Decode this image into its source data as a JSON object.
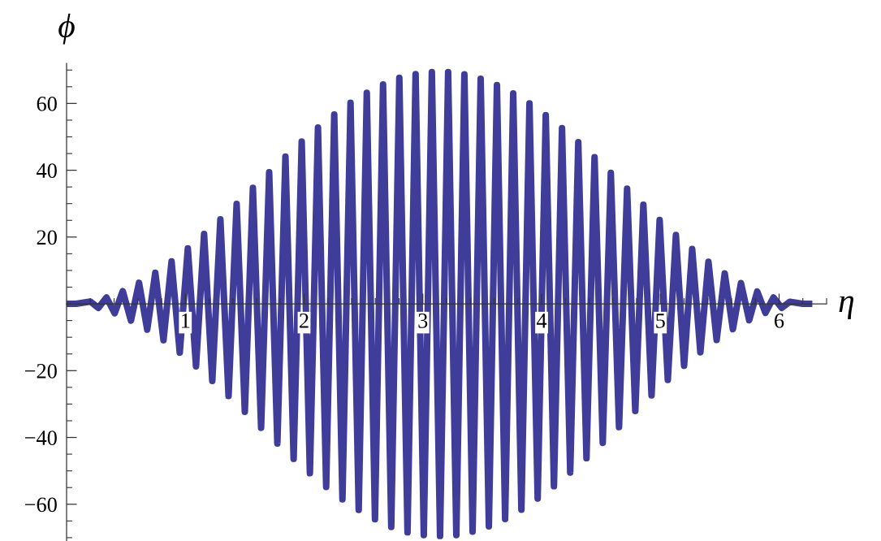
{
  "chart_data": {
    "type": "line",
    "xlabel": "η",
    "ylabel": "ϕ",
    "xlim": [
      0,
      6.4
    ],
    "ylim": [
      -71,
      72
    ],
    "xticks": [
      {
        "value": 0.2,
        "label": null
      },
      {
        "value": 0.4,
        "label": null
      },
      {
        "value": 0.6,
        "label": null
      },
      {
        "value": 0.8,
        "label": null
      },
      1,
      {
        "value": 1.2,
        "label": null
      },
      {
        "value": 1.4,
        "label": null
      },
      {
        "value": 1.6,
        "label": null
      },
      {
        "value": 1.8,
        "label": null
      },
      2,
      {
        "value": 2.2,
        "label": null
      },
      {
        "value": 2.4,
        "label": null
      },
      {
        "value": 2.6,
        "label": null
      },
      {
        "value": 2.8,
        "label": null
      },
      3,
      {
        "value": 3.2,
        "label": null
      },
      {
        "value": 3.4,
        "label": null
      },
      {
        "value": 3.6,
        "label": null
      },
      {
        "value": 3.8,
        "label": null
      },
      4,
      {
        "value": 4.2,
        "label": null
      },
      {
        "value": 4.4,
        "label": null
      },
      {
        "value": 4.6,
        "label": null
      },
      {
        "value": 4.8,
        "label": null
      },
      5,
      {
        "value": 5.2,
        "label": null
      },
      {
        "value": 5.4,
        "label": null
      },
      {
        "value": 5.6,
        "label": null
      },
      {
        "value": 5.8,
        "label": null
      },
      6,
      {
        "value": 6.2,
        "label": null
      },
      {
        "value": 6.4,
        "label": null
      }
    ],
    "yticks": [
      {
        "value": -70,
        "label": null
      },
      {
        "value": -60,
        "label": "−60"
      },
      {
        "value": -65,
        "label": null
      },
      {
        "value": -55,
        "label": null
      },
      {
        "value": -50,
        "label": null
      },
      {
        "value": -45,
        "label": null
      },
      {
        "value": -40,
        "label": "−40"
      },
      {
        "value": -35,
        "label": null
      },
      {
        "value": -30,
        "label": null
      },
      {
        "value": -25,
        "label": null
      },
      {
        "value": -20,
        "label": "−20"
      },
      {
        "value": -15,
        "label": null
      },
      {
        "value": -10,
        "label": null
      },
      {
        "value": -5,
        "label": null
      },
      {
        "value": 5,
        "label": null
      },
      {
        "value": 10,
        "label": null
      },
      {
        "value": 15,
        "label": null
      },
      20,
      {
        "value": 25,
        "label": null
      },
      {
        "value": 30,
        "label": null
      },
      {
        "value": 35,
        "label": null
      },
      40,
      {
        "value": 45,
        "label": null
      },
      {
        "value": 50,
        "label": null
      },
      {
        "value": 55,
        "label": null
      },
      60,
      {
        "value": 65,
        "label": null
      },
      {
        "value": 70,
        "label": null
      }
    ],
    "series": [
      {
        "color": "#3f3d99",
        "x": [
          0,
          0.08,
          0.199,
          0.268,
          0.336,
          0.405,
          0.473,
          0.542,
          0.61,
          0.679,
          0.747,
          0.816,
          0.884,
          0.953,
          1.021,
          1.09,
          1.158,
          1.227,
          1.295,
          1.364,
          1.432,
          1.501,
          1.569,
          1.638,
          1.706,
          1.775,
          1.843,
          1.912,
          1.98,
          2.049,
          2.117,
          2.186,
          2.254,
          2.323,
          2.391,
          2.46,
          2.528,
          2.597,
          2.665,
          2.734,
          2.802,
          2.871,
          2.939,
          3.008,
          3.076,
          3.145,
          3.213,
          3.282,
          3.35,
          3.419,
          3.487,
          3.556,
          3.624,
          3.693,
          3.761,
          3.83,
          3.898,
          3.967,
          4.035,
          4.104,
          4.172,
          4.241,
          4.309,
          4.378,
          4.446,
          4.515,
          4.583,
          4.652,
          4.72,
          4.789,
          4.857,
          4.926,
          4.994,
          5.063,
          5.131,
          5.2,
          5.268,
          5.337,
          5.405,
          5.474,
          5.542,
          5.611,
          5.679,
          5.748,
          5.816,
          5.885,
          5.953,
          6.022,
          6.09,
          6.2,
          6.28
        ],
        "values": [
          0,
          0,
          0.7,
          -1.2,
          1.9,
          -2.8,
          3.8,
          -5.0,
          6.3,
          -7.7,
          9.3,
          -10.9,
          12.7,
          -14.6,
          16.6,
          -18.7,
          20.9,
          -23.1,
          25.3,
          -27.6,
          29.9,
          -32.3,
          34.7,
          -37.1,
          39.4,
          -41.8,
          44.1,
          -46.4,
          48.6,
          -50.7,
          52.8,
          -54.8,
          56.7,
          -58.5,
          60.2,
          -61.7,
          63.2,
          -64.5,
          65.7,
          -66.8,
          67.7,
          -68.4,
          68.8,
          -69.2,
          69.4,
          -69.5,
          69.4,
          -69.2,
          68.7,
          -68.2,
          67.4,
          -66.6,
          65.5,
          -64.4,
          63.0,
          -61.6,
          60.0,
          -58.3,
          56.5,
          -54.6,
          52.6,
          -50.5,
          48.4,
          -46.2,
          43.9,
          -41.6,
          39.2,
          -36.9,
          34.5,
          -32.1,
          29.7,
          -27.4,
          25.1,
          -22.8,
          20.6,
          -18.5,
          16.4,
          -14.5,
          12.6,
          -10.8,
          9.1,
          -7.6,
          6.2,
          -4.9,
          3.7,
          -2.7,
          1.9,
          -1.2,
          0.6,
          0,
          0
        ]
      }
    ]
  }
}
